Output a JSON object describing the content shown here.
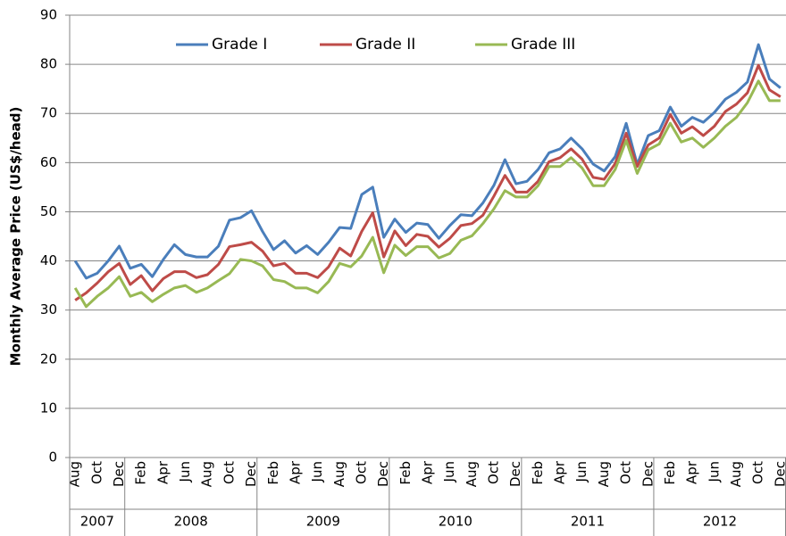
{
  "chart_data": {
    "type": "line",
    "y_label": "Monthly Average Price (US$/head)",
    "categories": [
      "Aug",
      null,
      "Oct",
      null,
      "Dec",
      null,
      "Feb",
      null,
      "Apr",
      null,
      "Jun",
      null,
      "Aug",
      null,
      "Oct",
      null,
      "Dec",
      null,
      "Feb",
      null,
      "Apr",
      null,
      "Jun",
      null,
      "Aug",
      null,
      "Oct",
      null,
      "Dec",
      null,
      "Feb",
      null,
      "Apr",
      null,
      "Jun",
      null,
      "Aug",
      null,
      "Oct",
      null,
      "Dec",
      null,
      "Feb",
      null,
      "Apr",
      null,
      "Jun",
      null,
      "Aug",
      null,
      "Oct",
      null,
      "Dec",
      null,
      "Feb",
      null,
      "Apr",
      null,
      "Jun",
      null,
      "Aug",
      null,
      "Oct",
      null,
      "Dec"
    ],
    "groups": [
      "2007",
      "2008",
      "2009",
      "2010",
      "2011",
      "2012"
    ],
    "series": [
      {
        "name": "Grade I",
        "color": "#4a7ebb",
        "values": [
          40,
          36.5,
          37.5,
          40,
          43,
          38.5,
          39.3,
          36.8,
          40.3,
          43.3,
          41.3,
          40.8,
          40.8,
          43,
          48.3,
          48.8,
          50.2,
          46,
          42.3,
          44.1,
          41.6,
          43.1,
          41.3,
          43.8,
          46.8,
          46.6,
          53.5,
          55,
          44.8,
          48.5,
          45.8,
          47.7,
          47.4,
          44.6,
          47.2,
          49.4,
          49.2,
          51.8,
          55.4,
          60.6,
          55.7,
          56.2,
          58.6,
          62,
          62.8,
          65,
          62.8,
          59.7,
          58.3,
          61.2,
          68,
          59.6,
          65.5,
          66.5,
          71.3,
          67.4,
          69.2,
          68.2,
          70.2,
          72.9,
          74.3,
          76.4,
          84,
          77,
          75.2
        ]
      },
      {
        "name": "Grade II",
        "color": "#be4b48",
        "values": [
          32,
          33.5,
          35.5,
          37.8,
          39.5,
          35.2,
          37,
          33.9,
          36.4,
          37.8,
          37.8,
          36.6,
          37.2,
          39.3,
          42.9,
          43.3,
          43.8,
          42,
          39,
          39.5,
          37.5,
          37.5,
          36.6,
          38.8,
          42.6,
          41,
          46,
          49.8,
          40.8,
          46.1,
          43.1,
          45.4,
          45,
          42.8,
          44.6,
          47.2,
          47.6,
          49.3,
          53.2,
          57.4,
          54,
          54,
          56.2,
          60.2,
          61,
          62.8,
          60.7,
          57,
          56.6,
          59.8,
          66,
          59.2,
          63.6,
          65,
          69.8,
          66,
          67.3,
          65.5,
          67.4,
          70.4,
          71.9,
          74.2,
          79.8,
          74.8,
          73.4
        ]
      },
      {
        "name": "Grade III",
        "color": "#98b954",
        "values": [
          34.5,
          30.7,
          32.8,
          34.5,
          36.8,
          32.8,
          33.6,
          31.7,
          33.2,
          34.5,
          35,
          33.6,
          34.5,
          36,
          37.4,
          40.3,
          40,
          39,
          36.2,
          35.8,
          34.5,
          34.5,
          33.5,
          35.8,
          39.5,
          38.8,
          41,
          44.8,
          37.6,
          43.2,
          41.1,
          42.9,
          42.9,
          40.6,
          41.5,
          44.2,
          45.1,
          47.6,
          50.6,
          54.3,
          53,
          53,
          55.3,
          59.2,
          59.2,
          61,
          58.9,
          55.3,
          55.3,
          58.6,
          64.5,
          57.8,
          62.6,
          63.8,
          68,
          64.2,
          65,
          63.1,
          65,
          67.4,
          69.2,
          72.2,
          76.6,
          72.6,
          72.6
        ]
      }
    ],
    "ylim": [
      0,
      90
    ],
    "yticks": [
      0,
      10,
      20,
      30,
      40,
      50,
      60,
      70,
      80,
      90
    ],
    "grid": true,
    "legend": "top"
  }
}
